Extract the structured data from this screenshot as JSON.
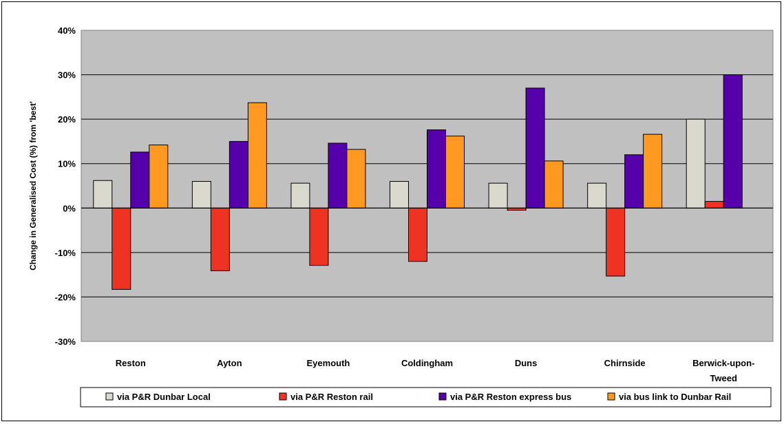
{
  "chart_data": {
    "type": "bar",
    "ylabel": "Change in Generalised Cost (%) from 'best'",
    "ylim": [
      -30,
      40
    ],
    "yticks": [
      -30,
      -20,
      -10,
      0,
      10,
      20,
      30,
      40
    ],
    "ytick_labels": [
      "-30%",
      "-20%",
      "-10%",
      "0%",
      "10%",
      "20%",
      "30%",
      "40%"
    ],
    "categories": [
      "Reston",
      "Ayton",
      "Eyemouth",
      "Coldingham",
      "Duns",
      "Chirnside",
      "Berwick-upon-Tweed"
    ],
    "category_lines": [
      [
        "Reston"
      ],
      [
        "Ayton"
      ],
      [
        "Eyemouth"
      ],
      [
        "Coldingham"
      ],
      [
        "Duns"
      ],
      [
        "Chirnside"
      ],
      [
        "Berwick-upon-",
        "Tweed"
      ]
    ],
    "series": [
      {
        "name": "via P&R Dunbar Local",
        "color": "#d9d9ce",
        "values": [
          6.2,
          6.0,
          5.6,
          6.0,
          5.6,
          5.6,
          20.0
        ]
      },
      {
        "name": "via P&R Reston rail",
        "color": "#ee3322",
        "values": [
          -18.3,
          -14.1,
          -12.9,
          -12.0,
          -0.5,
          -15.3,
          1.5
        ]
      },
      {
        "name": "via P&R Reston express bus",
        "color": "#5500aa",
        "values": [
          12.6,
          15.0,
          14.6,
          17.6,
          27.0,
          12.0,
          30.0
        ]
      },
      {
        "name": "via bus link to Dunbar Rail",
        "color": "#ff9922",
        "values": [
          14.2,
          23.7,
          13.2,
          16.2,
          10.6,
          16.6,
          null
        ]
      }
    ],
    "grid": true,
    "plot_background": "#c0c0c0",
    "legend_position": "bottom"
  }
}
